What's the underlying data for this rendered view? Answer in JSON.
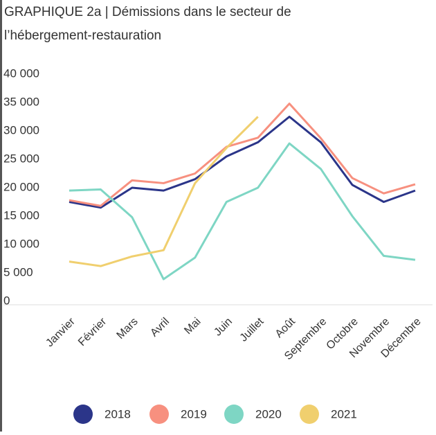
{
  "chart_data": {
    "type": "line",
    "title_lines": [
      "GRAPHIQUE 2a | Démissions dans le secteur de",
      "l’hébergement-restauration"
    ],
    "categories": [
      "Janvier",
      "Février",
      "Mars",
      "Avril",
      "Mai",
      "Juin",
      "Juillet",
      "Août",
      "Septembre",
      "Octobre",
      "Novembre",
      "Décembre"
    ],
    "series": [
      {
        "name": "2018",
        "color": "#2b3589",
        "values": [
          17500,
          16500,
          20000,
          19500,
          21500,
          25500,
          28000,
          32500,
          28000,
          20500,
          17500,
          19500
        ]
      },
      {
        "name": "2019",
        "color": "#f7907f",
        "values": [
          17800,
          16800,
          21300,
          20800,
          22500,
          27200,
          28800,
          34800,
          28700,
          21700,
          19000,
          20600
        ]
      },
      {
        "name": "2020",
        "color": "#7ed6c4",
        "values": [
          19500,
          19700,
          14800,
          3900,
          7700,
          17500,
          20000,
          27800,
          23300,
          15000,
          8000,
          7300
        ]
      },
      {
        "name": "2021",
        "color": "#f0cf6e",
        "values": [
          7000,
          6200,
          7900,
          9000,
          20800,
          27000,
          32500,
          null,
          null,
          null,
          null,
          null
        ]
      }
    ],
    "ylim": [
      0,
      40000
    ],
    "yticks": [
      0,
      {
        "value": 5000,
        "label": "5 000"
      },
      {
        "value": 10000,
        "label": "10 000"
      },
      {
        "value": 15000,
        "label": "15 000"
      },
      {
        "value": 20000,
        "label": "20 000"
      },
      {
        "value": 25000,
        "label": "25 000"
      },
      {
        "value": 30000,
        "label": "30 000"
      },
      {
        "value": 35000,
        "label": "35 000"
      },
      {
        "value": 40000,
        "label": "40 000"
      }
    ],
    "legend": "bottom"
  }
}
